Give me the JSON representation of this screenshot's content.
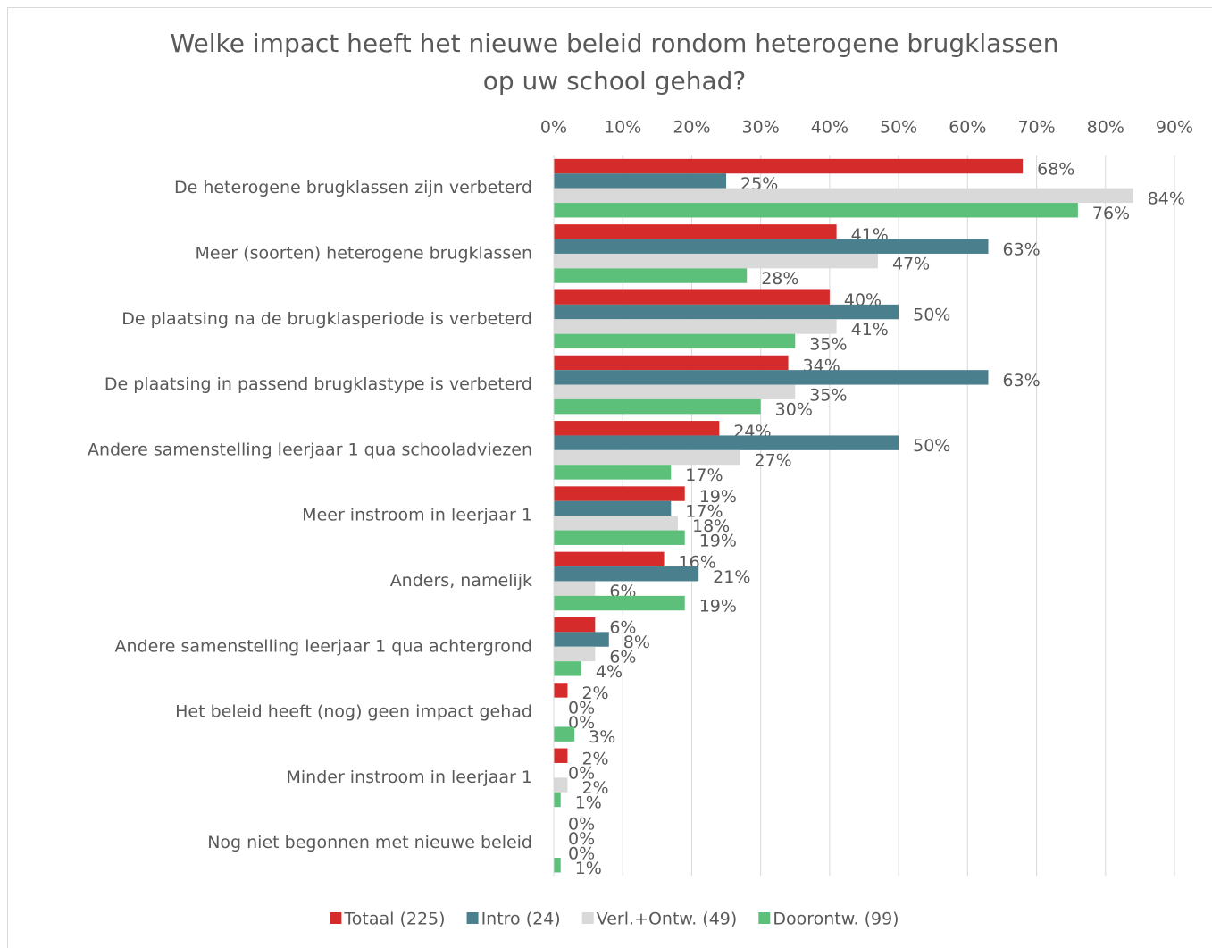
{
  "chart_data": {
    "type": "hbar",
    "title": [
      "Welke impact heeft het nieuwe beleid rondom heterogene brugklassen",
      "op uw school gehad?"
    ],
    "categories": [
      "De heterogene brugklassen zijn verbeterd",
      "Meer (soorten) heterogene brugklassen",
      "De plaatsing na de brugklasperiode is verbeterd",
      "De plaatsing in passend brugklastype is verbeterd",
      "Andere samenstelling leerjaar 1 qua schooladviezen",
      "Meer instroom in leerjaar 1",
      "Anders, namelijk",
      "Andere samenstelling leerjaar 1 qua achtergrond",
      "Het beleid heeft (nog) geen impact gehad",
      "Minder instroom in leerjaar 1",
      "Nog niet begonnen met nieuwe beleid"
    ],
    "series": [
      {
        "name": "Totaal (225)",
        "color": "#d62b2b",
        "values": [
          68,
          41,
          40,
          34,
          24,
          19,
          16,
          6,
          2,
          2,
          0
        ],
        "value_labels": [
          "68%",
          "41%",
          "40%",
          "34%",
          "24%",
          "19%",
          "16%",
          "6%",
          "2%",
          "2%",
          "0%"
        ]
      },
      {
        "name": "Intro (24)",
        "color": "#4a7f8e",
        "values": [
          25,
          63,
          50,
          63,
          50,
          17,
          21,
          8,
          0,
          0,
          0
        ],
        "value_labels": [
          "25%",
          "63%",
          "50%",
          "63%",
          "50%",
          "17%",
          "21%",
          "8%",
          "0%",
          "0%",
          "0%"
        ]
      },
      {
        "name": "Verl.+Ontw. (49)",
        "color": "#d9d9d9",
        "values": [
          84,
          47,
          41,
          35,
          27,
          18,
          6,
          6,
          0,
          2,
          0
        ],
        "value_labels": [
          "84%",
          "47%",
          "41%",
          "35%",
          "27%",
          "18%",
          "6%",
          "6%",
          "0%",
          "2%",
          "0%"
        ]
      },
      {
        "name": "Doorontw. (99)",
        "color": "#5cbf7a",
        "values": [
          76,
          28,
          35,
          30,
          17,
          19,
          19,
          4,
          3,
          1,
          1
        ],
        "value_labels": [
          "76%",
          "28%",
          "35%",
          "30%",
          "17%",
          "19%",
          "19%",
          "4%",
          "3%",
          "1%",
          "1%"
        ]
      }
    ],
    "xlim": [
      0,
      90
    ],
    "xticks": [
      {
        "value": 0,
        "label": "0%"
      },
      {
        "value": 10,
        "label": "10%"
      },
      {
        "value": 20,
        "label": "20%"
      },
      {
        "value": 30,
        "label": "30%"
      },
      {
        "value": 40,
        "label": "40%"
      },
      {
        "value": 50,
        "label": "50%"
      },
      {
        "value": 60,
        "label": "60%"
      },
      {
        "value": 70,
        "label": "70%"
      },
      {
        "value": 80,
        "label": "80%"
      },
      {
        "value": 90,
        "label": "90%"
      }
    ],
    "grid": true,
    "legend": "bottom"
  }
}
